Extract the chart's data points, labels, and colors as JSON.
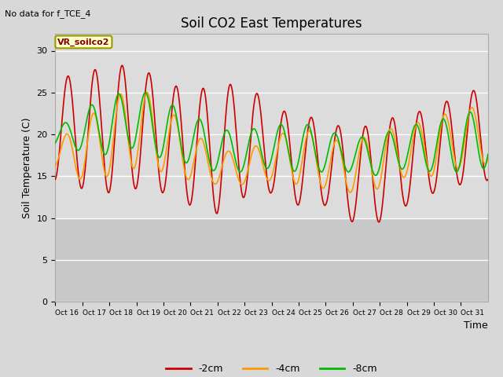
{
  "title": "Soil CO2 East Temperatures",
  "no_data_text": "No data for f_TCE_4",
  "legend_box_text": "VR_soilco2",
  "xlabel": "Time",
  "ylabel": "Soil Temperature (C)",
  "ylim": [
    0,
    32
  ],
  "yticks": [
    0,
    5,
    10,
    15,
    20,
    25,
    30
  ],
  "xtick_labels": [
    "Oct 16Oct",
    "17Oct",
    "18Oct",
    "19Oct",
    "20Oct",
    "21Oct",
    "22Oct",
    "23Oct",
    "24Oct",
    "25Oct",
    "26Oct",
    "27Oct",
    "28Oct",
    "29Oct",
    "30Oct 31"
  ],
  "line_colors": {
    "2cm": "#cc0000",
    "4cm": "#ff9900",
    "8cm": "#00bb00"
  },
  "legend_labels": [
    "-2cm",
    "-4cm",
    "-8cm"
  ],
  "legend_colors": [
    "#cc0000",
    "#ff9900",
    "#00bb00"
  ],
  "upper_bg_color": "#dcdcdc",
  "lower_bg_color": "#c8c8c8",
  "grid_color": "#ffffff",
  "title_fontsize": 12,
  "label_fontsize": 9,
  "tick_fontsize": 8,
  "n_days": 16,
  "pts_per_day": 96,
  "red_centers": [
    20.5,
    20.5,
    20.5,
    21.0,
    19.5,
    18.5,
    18.0,
    19.5,
    18.0,
    17.0,
    16.5,
    15.0,
    15.5,
    17.0,
    18.0,
    19.5,
    20.0
  ],
  "red_amps": [
    6.0,
    7.0,
    7.5,
    7.5,
    6.5,
    7.0,
    7.5,
    7.0,
    5.0,
    5.5,
    5.0,
    5.5,
    6.0,
    5.5,
    5.0,
    5.5,
    5.5
  ],
  "orange_centers": [
    17.5,
    18.0,
    19.5,
    21.0,
    19.5,
    17.5,
    16.0,
    16.0,
    17.0,
    17.5,
    16.5,
    16.0,
    17.0,
    18.0,
    18.5,
    19.5,
    20.0
  ],
  "orange_amps": [
    1.5,
    3.5,
    4.5,
    5.0,
    4.0,
    3.0,
    2.0,
    2.0,
    2.5,
    3.5,
    3.0,
    3.0,
    3.5,
    3.0,
    3.5,
    3.5,
    3.5
  ],
  "green_centers": [
    19.5,
    20.5,
    21.0,
    22.0,
    20.5,
    19.5,
    18.0,
    18.0,
    18.5,
    18.5,
    18.0,
    17.5,
    17.5,
    18.5,
    18.5,
    19.0,
    19.5
  ],
  "green_amps": [
    1.0,
    2.5,
    3.5,
    3.5,
    3.5,
    3.0,
    2.5,
    2.5,
    2.5,
    3.0,
    2.5,
    2.0,
    2.5,
    2.5,
    3.0,
    3.5,
    3.5
  ],
  "phase_red": -1.371,
  "phase_orange": -0.971,
  "phase_green": -0.571
}
